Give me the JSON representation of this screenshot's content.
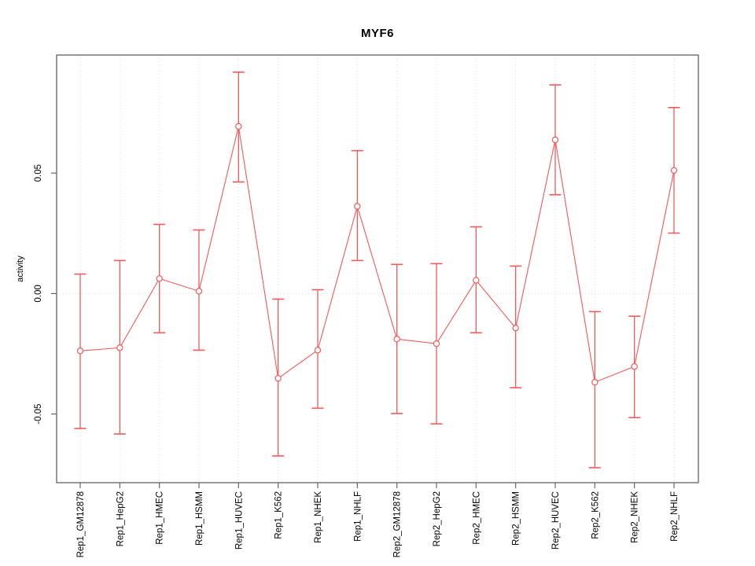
{
  "figure": {
    "title": "MYF6",
    "ylabel": "activity"
  },
  "chart_data": {
    "type": "line",
    "title": "MYF6",
    "xlabel": "",
    "ylabel": "activity",
    "categories": [
      "Rep1_GM12878",
      "Rep1_HepG2",
      "Rep1_HMEC",
      "Rep1_HSMM",
      "Rep1_HUVEC",
      "Rep1_K562",
      "Rep1_NHEK",
      "Rep1_NHLF",
      "Rep2_GM12878",
      "Rep2_HepG2",
      "Rep2_HMEC",
      "Rep2_HSMM",
      "Rep2_HUVEC",
      "Rep2_K562",
      "Rep2_NHEK",
      "Rep2_NHLF"
    ],
    "series": [
      {
        "name": "activity",
        "values": [
          -0.0238,
          -0.0225,
          0.0062,
          0.001,
          0.0694,
          -0.0352,
          -0.0235,
          0.0362,
          -0.0189,
          -0.0208,
          0.0055,
          -0.0143,
          0.0638,
          -0.0368,
          -0.0303,
          0.0511
        ],
        "upper": [
          0.0081,
          0.0137,
          0.0287,
          0.0264,
          0.0919,
          -0.0023,
          0.0016,
          0.0593,
          0.0121,
          0.0124,
          0.0277,
          0.0114,
          0.0866,
          -0.0075,
          -0.0094,
          0.0772
        ],
        "lower": [
          -0.056,
          -0.0583,
          -0.0163,
          -0.0235,
          0.0463,
          -0.0674,
          -0.0476,
          0.0137,
          -0.0498,
          -0.0541,
          -0.0163,
          -0.0391,
          0.041,
          -0.0723,
          -0.0515,
          0.0251
        ]
      }
    ],
    "ylim": [
      -0.0785,
      0.099
    ],
    "yticks": [
      -0.05,
      0.0,
      0.05
    ],
    "ytick_labels": [
      "-0.05",
      "0.00",
      "0.05"
    ],
    "grid": "vertical dotted gridlines at each category; dotted horizontal line at y=0",
    "legend": "none",
    "point_style": "open-circle",
    "error_bars": true,
    "line_color": "#f05a5a",
    "grid_color": "#dcdcdc",
    "zero_line_color": "#dedede",
    "box_color": "#555555",
    "tick_color": "#666666",
    "text_color": "#000000"
  }
}
